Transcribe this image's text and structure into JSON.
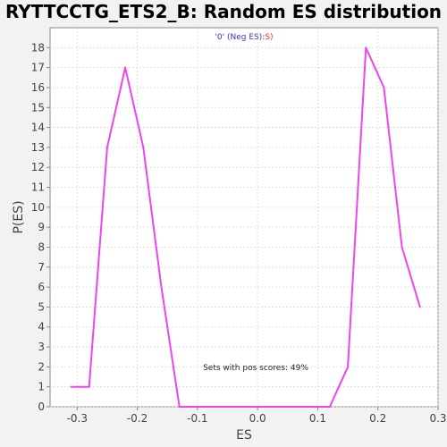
{
  "chart_data": {
    "type": "line",
    "title": "RYTTCCTG_ETS2_B: Random ES distribution",
    "xlabel": "ES",
    "ylabel": "P(ES)",
    "xlim": [
      -0.345,
      0.3
    ],
    "ylim": [
      0,
      19
    ],
    "x_ticks": [
      -0.3,
      -0.2,
      -0.1,
      0.0,
      0.1,
      0.2,
      0.3
    ],
    "x_tick_labels": [
      "-0.3",
      "-0.2",
      "-0.1",
      "0.0",
      "0.1",
      "0.2",
      "0.3"
    ],
    "y_ticks": [
      0,
      1,
      2,
      3,
      4,
      5,
      6,
      7,
      8,
      9,
      10,
      11,
      12,
      13,
      14,
      15,
      16,
      17,
      18
    ],
    "y_tick_labels": [
      "0",
      "1",
      "2",
      "3",
      "4",
      "5",
      "6",
      "7",
      "8",
      "9",
      "10",
      "11",
      "12",
      "13",
      "14",
      "15",
      "16",
      "17",
      "18"
    ],
    "grid": true,
    "legend": {
      "placement": "top-center",
      "prefix": "'0' (Neg ES)",
      "separator": ":",
      "suffix": "S)"
    },
    "annotation": "Sets with pos scores: 49%",
    "series": [
      {
        "color": "#ee44ee",
        "x": [
          -0.31,
          -0.28,
          -0.25,
          -0.22,
          -0.19,
          -0.16,
          -0.13,
          -0.1,
          -0.07,
          -0.04,
          -0.01,
          0.02,
          0.05,
          0.08,
          0.12,
          0.15,
          0.18,
          0.21,
          0.24,
          0.27
        ],
        "y": [
          1,
          1,
          13,
          17,
          13,
          6,
          0,
          0,
          0,
          0,
          0,
          0,
          0,
          0,
          0,
          2,
          18,
          16,
          8,
          5
        ]
      }
    ],
    "colors": {
      "background": "#f2f2f2",
      "plot_background": "#ffffff",
      "grid": "#d8d8d8",
      "legend_neg": "#3333cc",
      "legend_pos": "#ee3333"
    }
  }
}
